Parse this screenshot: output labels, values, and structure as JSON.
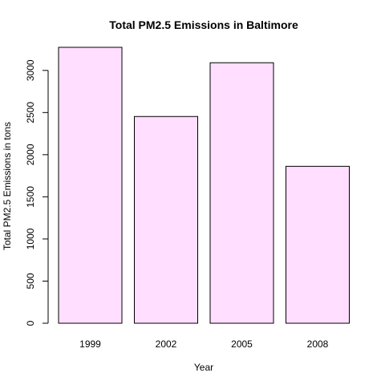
{
  "chart_data": {
    "type": "bar",
    "title": "Total PM2.5 Emissions in Baltimore",
    "xlabel": "Year",
    "ylabel": "Total PM2.5 Emissions in tons",
    "categories": [
      "1999",
      "2002",
      "2005",
      "2008"
    ],
    "values": [
      3274,
      2453,
      3091,
      1862
    ],
    "yticks": [
      0,
      500,
      1000,
      1500,
      2000,
      2500,
      3000
    ],
    "ylim": [
      0,
      3274
    ],
    "bar_fill": "#ffdeff",
    "bar_stroke": "#000000",
    "grid": false
  }
}
